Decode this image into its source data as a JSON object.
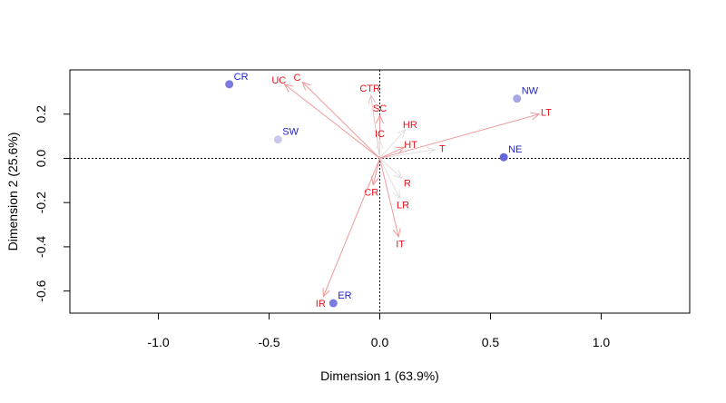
{
  "chart_data": {
    "type": "scatter",
    "title": "",
    "xlabel": "Dimension 1 (63.9%)",
    "ylabel": "Dimension 2 (25.6%)",
    "xlim": [
      -1.4,
      1.4
    ],
    "ylim": [
      -0.7,
      0.4
    ],
    "x_ticks": [
      -1.0,
      -0.5,
      0.0,
      0.5,
      1.0
    ],
    "x_tick_labels": [
      "-1.0",
      "-0.5",
      "0.0",
      "0.5",
      "1.0"
    ],
    "y_ticks": [
      -0.6,
      -0.4,
      -0.2,
      0.0,
      0.2
    ],
    "y_tick_labels": [
      "-0.6",
      "-0.4",
      "-0.2",
      "0.0",
      "0.2"
    ],
    "reference_lines": {
      "x": 0,
      "y": 0,
      "style": "dotted"
    },
    "grid": false,
    "points": [
      {
        "label": "CR",
        "x": -0.68,
        "y": 0.335,
        "color": "#7b7be0"
      },
      {
        "label": "SW",
        "x": -0.46,
        "y": 0.085,
        "color": "#c8c8ec"
      },
      {
        "label": "NW",
        "x": 0.62,
        "y": 0.27,
        "color": "#a6a6e6"
      },
      {
        "label": "NE",
        "x": 0.56,
        "y": 0.005,
        "color": "#6666dd"
      },
      {
        "label": "ER",
        "x": -0.21,
        "y": -0.655,
        "color": "#7b7be0"
      }
    ],
    "arrows": [
      {
        "label": "C",
        "x": -0.35,
        "y": 0.345,
        "color": "#ee9a9a"
      },
      {
        "label": "UC",
        "x": -0.43,
        "y": 0.335,
        "color": "#ee9a9a"
      },
      {
        "label": "CTR",
        "x": -0.04,
        "y": 0.285,
        "color": "#e8c0c0"
      },
      {
        "label": "SC",
        "x": 0.0,
        "y": 0.195,
        "color": "#ee9a9a"
      },
      {
        "label": "HR",
        "x": 0.115,
        "y": 0.13,
        "color": "#e2dede"
      },
      {
        "label": "IC",
        "x": 0.0,
        "y": 0.08,
        "color": "#e2dede"
      },
      {
        "label": "HT",
        "x": 0.11,
        "y": 0.05,
        "color": "#ee9a9a"
      },
      {
        "label": "T",
        "x": 0.25,
        "y": 0.04,
        "color": "#e2dede"
      },
      {
        "label": "LT",
        "x": 0.72,
        "y": 0.2,
        "color": "#ee9a9a"
      },
      {
        "label": "R",
        "x": 0.1,
        "y": -0.09,
        "color": "#e2dede"
      },
      {
        "label": "CR",
        "x": -0.03,
        "y": -0.12,
        "color": "#ee9a9a"
      },
      {
        "label": "LR",
        "x": 0.09,
        "y": -0.18,
        "color": "#e2dede"
      },
      {
        "label": "IT",
        "x": 0.085,
        "y": -0.355,
        "color": "#ee9a9a"
      },
      {
        "label": "IR",
        "x": -0.255,
        "y": -0.625,
        "color": "#ee9a9a"
      }
    ],
    "label_colors": {
      "points": "#2222cc",
      "arrows": "#e8141d"
    }
  }
}
